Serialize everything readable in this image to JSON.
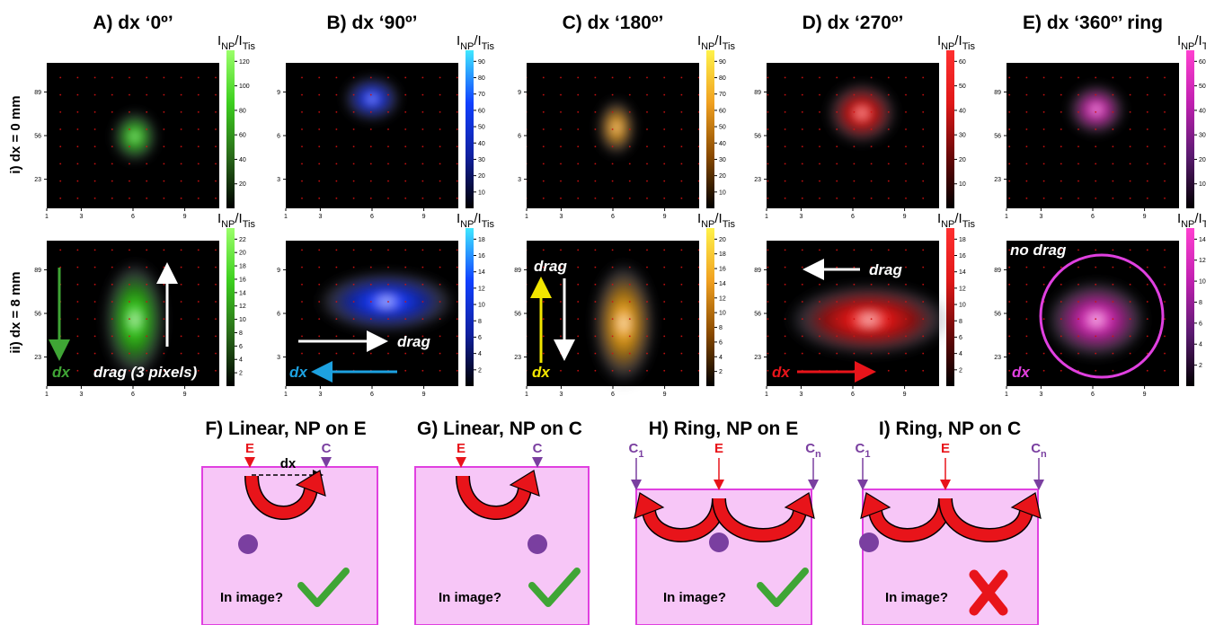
{
  "colorbar_label": {
    "main": "I",
    "sub": "NP",
    "main2": "/I",
    "sub2": "Tis"
  },
  "row_labels": [
    "i) dx = 0 mm",
    "ii) dx = 8 mm"
  ],
  "panels": [
    {
      "title": "A) dx ‘0º’",
      "rows": [
        {
          "xticks": [
            1,
            3,
            6,
            9
          ],
          "yticks": [
            23,
            56,
            89
          ],
          "colorbar_ticks": [
            20,
            40,
            60,
            80,
            100,
            120
          ],
          "annotations": []
        },
        {
          "xticks": [
            1,
            3,
            6,
            9
          ],
          "yticks": [
            23,
            56,
            89
          ],
          "colorbar_ticks": [
            2,
            4,
            6,
            8,
            10,
            12,
            14,
            16,
            18,
            20,
            22
          ],
          "annotations": [
            "dx",
            "drag (3 pixels)"
          ]
        }
      ]
    },
    {
      "title": "B) dx ‘90º’",
      "rows": [
        {
          "xticks": [
            1,
            3,
            6,
            9
          ],
          "yticks": [
            3,
            6,
            9
          ],
          "colorbar_ticks": [
            10,
            20,
            30,
            40,
            50,
            60,
            70,
            80,
            90
          ],
          "annotations": []
        },
        {
          "xticks": [
            1,
            3,
            6,
            9
          ],
          "yticks": [
            3,
            6,
            9
          ],
          "colorbar_ticks": [
            2,
            4,
            6,
            8,
            10,
            12,
            14,
            16,
            18
          ],
          "annotations": [
            "drag",
            "dx"
          ]
        }
      ]
    },
    {
      "title": "C) dx ‘180º’",
      "rows": [
        {
          "xticks": [
            1,
            3,
            6,
            9
          ],
          "yticks": [
            3,
            6,
            9
          ],
          "colorbar_ticks": [
            10,
            20,
            30,
            40,
            50,
            60,
            70,
            80,
            90
          ],
          "annotations": []
        },
        {
          "xticks": [
            1,
            3,
            6,
            9
          ],
          "yticks": [
            23,
            56,
            89
          ],
          "colorbar_ticks": [
            2,
            4,
            6,
            8,
            10,
            12,
            14,
            16,
            18,
            20
          ],
          "annotations": [
            "drag",
            "dx"
          ]
        }
      ]
    },
    {
      "title": "D) dx ‘270º’",
      "rows": [
        {
          "xticks": [
            1,
            3,
            6,
            9
          ],
          "yticks": [
            23,
            56,
            89
          ],
          "colorbar_ticks": [
            10,
            20,
            30,
            40,
            50,
            60
          ],
          "annotations": []
        },
        {
          "xticks": [
            1,
            3,
            6,
            9
          ],
          "yticks": [
            23,
            56,
            89
          ],
          "colorbar_ticks": [
            2,
            4,
            6,
            8,
            10,
            12,
            14,
            16,
            18
          ],
          "annotations": [
            "drag",
            "dx"
          ]
        }
      ]
    },
    {
      "title": "E) dx ‘360º’ ring",
      "rows": [
        {
          "xticks": [
            1,
            3,
            6,
            9
          ],
          "yticks": [
            23,
            56,
            89
          ],
          "colorbar_ticks": [
            10,
            20,
            30,
            40,
            50,
            60
          ],
          "annotations": []
        },
        {
          "xticks": [
            1,
            3,
            6,
            9
          ],
          "yticks": [
            23,
            56,
            89
          ],
          "colorbar_ticks": [
            2,
            4,
            6,
            8,
            10,
            12,
            14
          ],
          "annotations": [
            "no drag",
            "dx"
          ]
        }
      ]
    }
  ],
  "diagrams": [
    {
      "title": "F) Linear, NP on E",
      "labels": [
        {
          "text": "E"
        },
        {
          "text": "C"
        }
      ],
      "distance": "dx",
      "question": "In image?"
    },
    {
      "title": "G) Linear, NP on C",
      "labels": [
        {
          "text": "E"
        },
        {
          "text": "C"
        }
      ],
      "question": "In image?"
    },
    {
      "title": "H) Ring, NP on E",
      "labels": [
        {
          "text": "C",
          "sub": "1"
        },
        {
          "text": "E"
        },
        {
          "text": "C",
          "sub": "n"
        }
      ],
      "question": "In image?"
    },
    {
      "title": "I) Ring, NP on C",
      "labels": [
        {
          "text": "C",
          "sub": "1"
        },
        {
          "text": "E"
        },
        {
          "text": "C",
          "sub": "n"
        }
      ],
      "question": "In image?"
    }
  ]
}
